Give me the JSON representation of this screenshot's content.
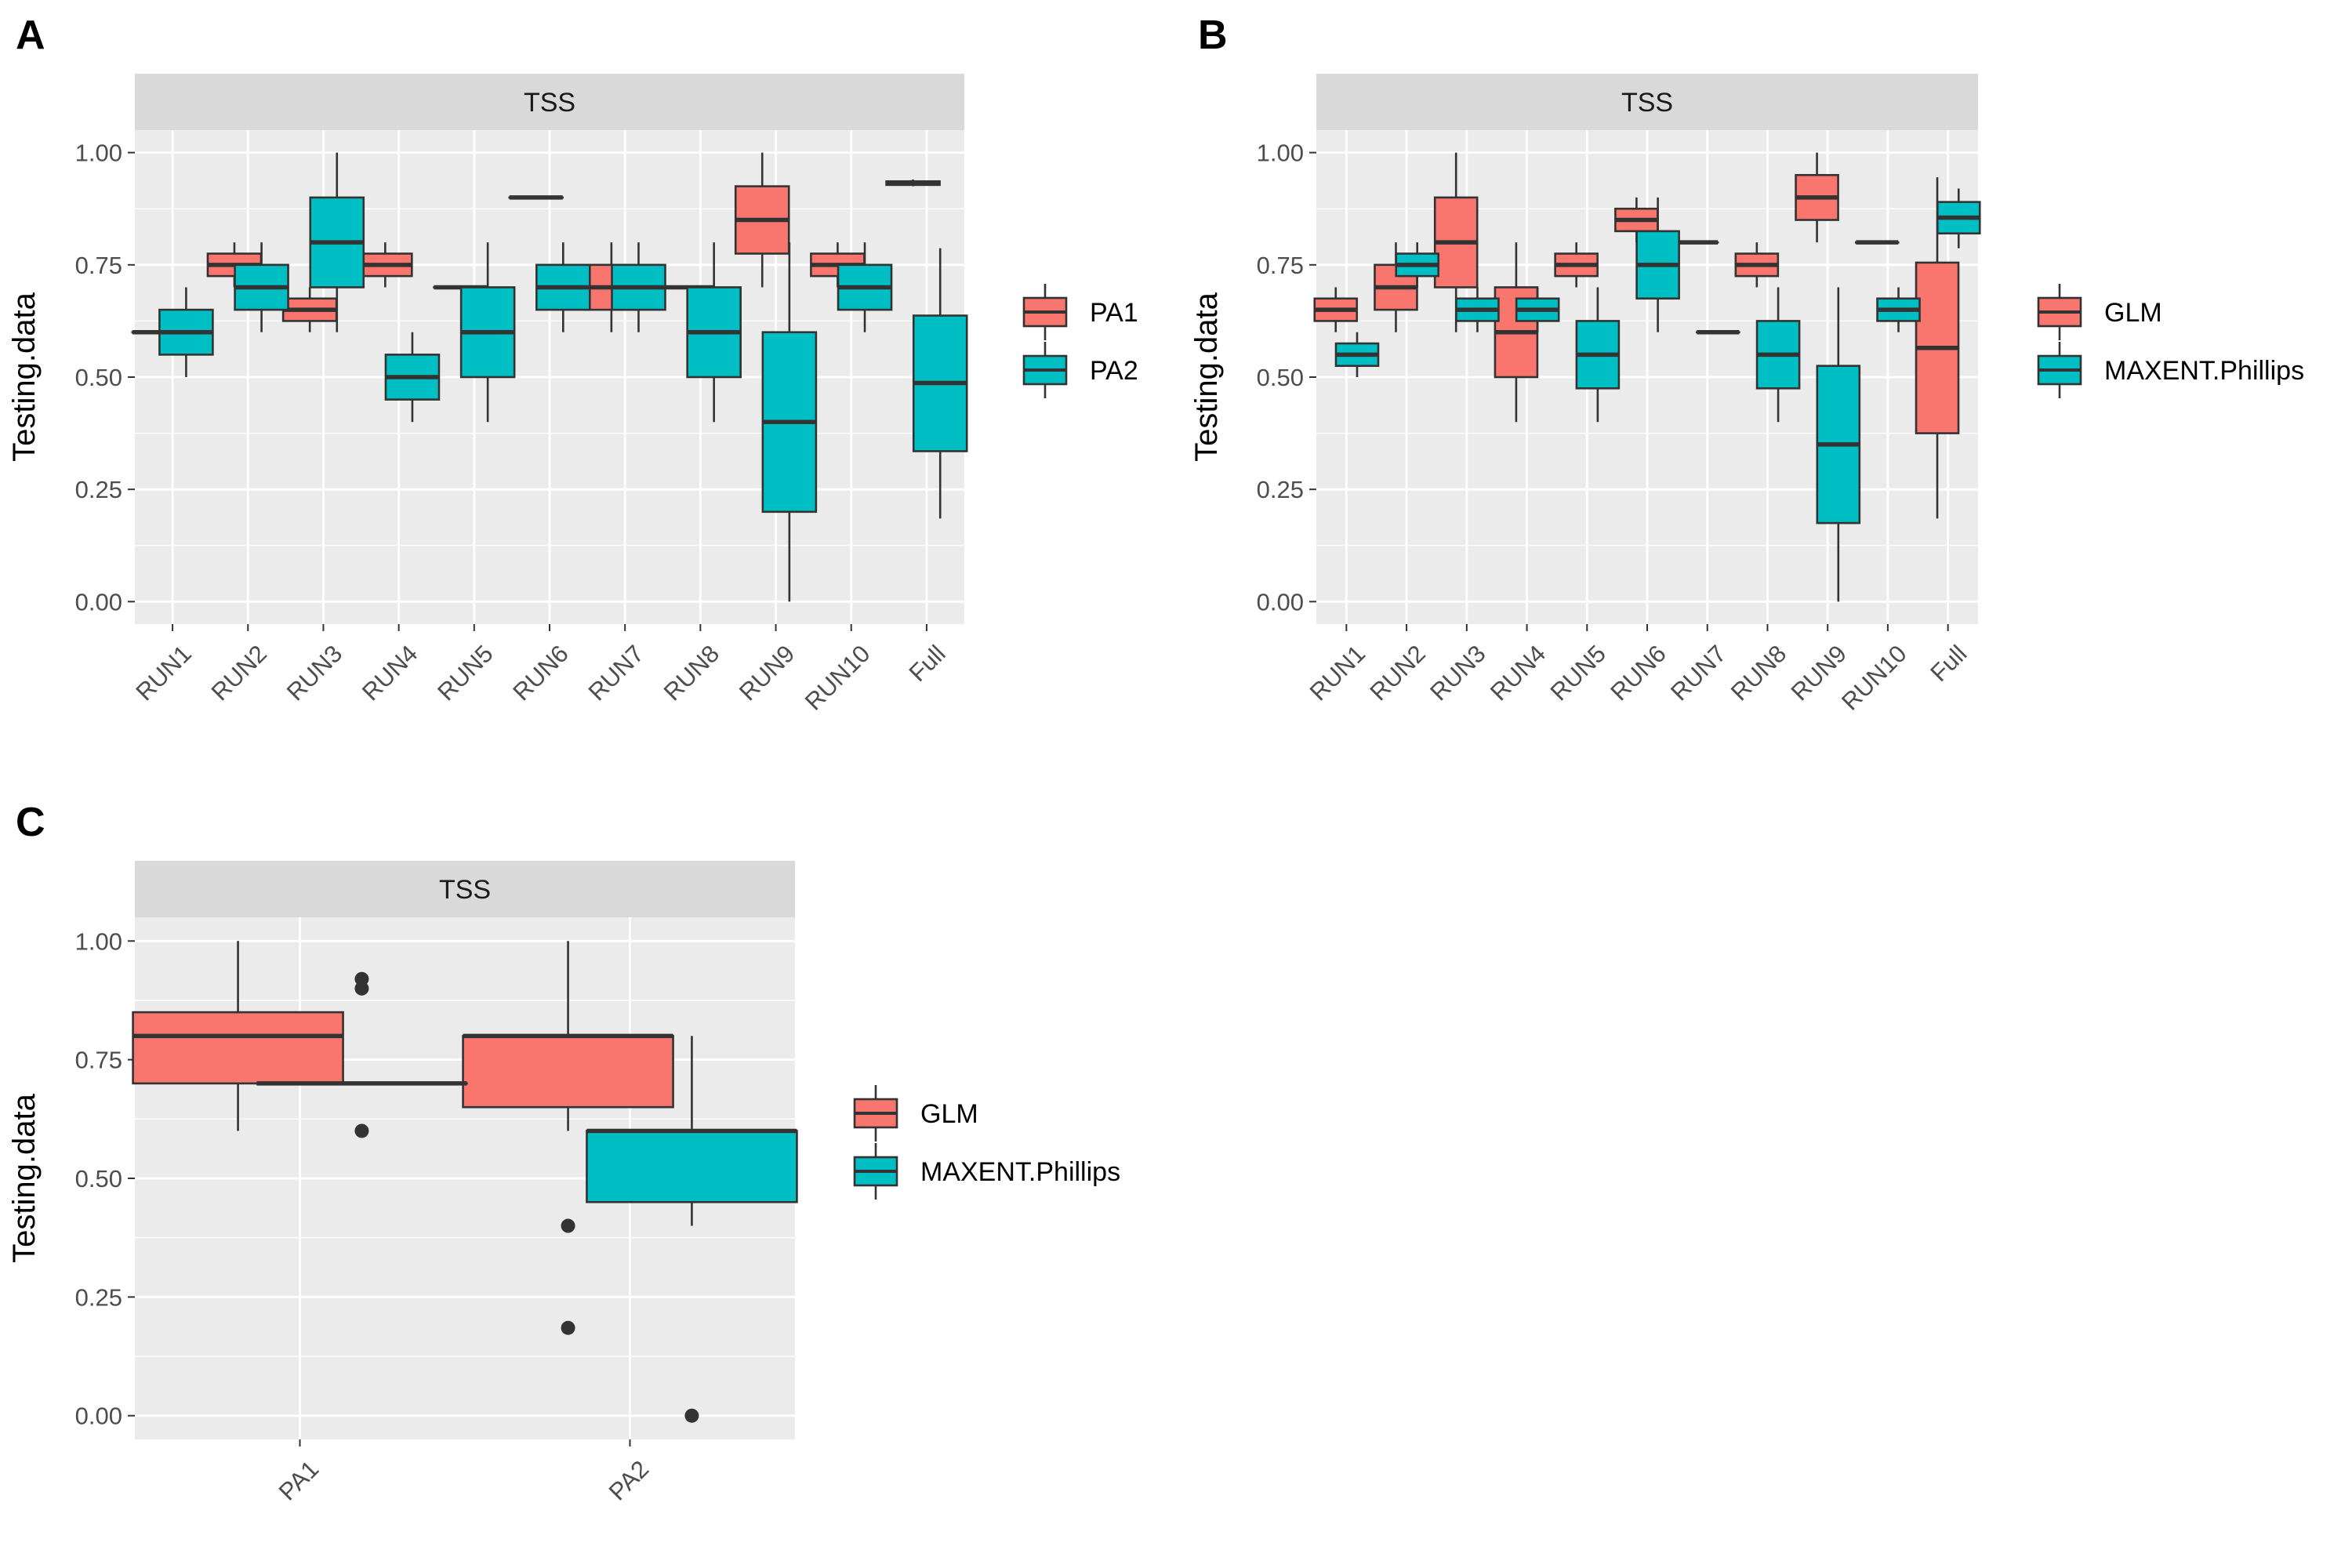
{
  "colors": {
    "red": "#F8766D",
    "teal": "#00BFC4",
    "panel_bg": "#EBEBEB",
    "strip_bg": "#D9D9D9",
    "grid": "#FFFFFF",
    "outline": "#333333"
  },
  "chart_data": [
    {
      "panel": "A",
      "type": "box",
      "strip": "TSS",
      "ylabel": "Testing.data",
      "xlabel": "",
      "ylim": [
        0,
        1.05
      ],
      "yticks": [
        "0.00",
        "0.25",
        "0.50",
        "0.75",
        "1.00"
      ],
      "categories": [
        "RUN1",
        "RUN2",
        "RUN3",
        "RUN4",
        "RUN5",
        "RUN6",
        "RUN7",
        "RUN8",
        "RUN9",
        "RUN10",
        "Full"
      ],
      "series": [
        {
          "name": "PA1",
          "color": "#F8766D",
          "boxes": [
            {
              "min": 0.6,
              "q1": 0.6,
              "median": 0.6,
              "q3": 0.6,
              "max": 0.6
            },
            {
              "min": 0.7,
              "q1": 0.725,
              "median": 0.75,
              "q3": 0.775,
              "max": 0.8
            },
            {
              "min": 0.6,
              "q1": 0.625,
              "median": 0.65,
              "q3": 0.675,
              "max": 0.7
            },
            {
              "min": 0.7,
              "q1": 0.725,
              "median": 0.75,
              "q3": 0.775,
              "max": 0.8
            },
            {
              "min": 0.7,
              "q1": 0.7,
              "median": 0.7,
              "q3": 0.7,
              "max": 0.7
            },
            {
              "min": 0.9,
              "q1": 0.9,
              "median": 0.9,
              "q3": 0.9,
              "max": 0.9
            },
            {
              "min": 0.6,
              "q1": 0.65,
              "median": 0.7,
              "q3": 0.75,
              "max": 0.8
            },
            {
              "min": 0.7,
              "q1": 0.7,
              "median": 0.7,
              "q3": 0.7,
              "max": 0.7
            },
            {
              "min": 0.7,
              "q1": 0.775,
              "median": 0.85,
              "q3": 0.925,
              "max": 1.0
            },
            {
              "min": 0.7,
              "q1": 0.725,
              "median": 0.75,
              "q3": 0.775,
              "max": 0.8
            },
            {
              "min": 0.925,
              "q1": 0.928,
              "median": 0.932,
              "q3": 0.936,
              "max": 0.94
            }
          ]
        },
        {
          "name": "PA2",
          "color": "#00BFC4",
          "boxes": [
            {
              "min": 0.5,
              "q1": 0.55,
              "median": 0.6,
              "q3": 0.65,
              "max": 0.7
            },
            {
              "min": 0.6,
              "q1": 0.65,
              "median": 0.7,
              "q3": 0.75,
              "max": 0.8
            },
            {
              "min": 0.6,
              "q1": 0.7,
              "median": 0.8,
              "q3": 0.9,
              "max": 1.0
            },
            {
              "min": 0.4,
              "q1": 0.45,
              "median": 0.5,
              "q3": 0.55,
              "max": 0.6
            },
            {
              "min": 0.4,
              "q1": 0.5,
              "median": 0.6,
              "q3": 0.7,
              "max": 0.8
            },
            {
              "min": 0.6,
              "q1": 0.65,
              "median": 0.7,
              "q3": 0.75,
              "max": 0.8
            },
            {
              "min": 0.6,
              "q1": 0.65,
              "median": 0.7,
              "q3": 0.75,
              "max": 0.8
            },
            {
              "min": 0.4,
              "q1": 0.5,
              "median": 0.6,
              "q3": 0.7,
              "max": 0.8
            },
            {
              "min": 0.0,
              "q1": 0.2,
              "median": 0.4,
              "q3": 0.6,
              "max": 0.8
            },
            {
              "min": 0.6,
              "q1": 0.65,
              "median": 0.7,
              "q3": 0.75,
              "max": 0.8
            },
            {
              "min": 0.185,
              "q1": 0.335,
              "median": 0.487,
              "q3": 0.637,
              "max": 0.787
            }
          ]
        }
      ]
    },
    {
      "panel": "B",
      "type": "box",
      "strip": "TSS",
      "ylabel": "Testing.data",
      "xlabel": "",
      "ylim": [
        0,
        1.05
      ],
      "yticks": [
        "0.00",
        "0.25",
        "0.50",
        "0.75",
        "1.00"
      ],
      "categories": [
        "RUN1",
        "RUN2",
        "RUN3",
        "RUN4",
        "RUN5",
        "RUN6",
        "RUN7",
        "RUN8",
        "RUN9",
        "RUN10",
        "Full"
      ],
      "series": [
        {
          "name": "GLM",
          "color": "#F8766D",
          "boxes": [
            {
              "min": 0.6,
              "q1": 0.625,
              "median": 0.65,
              "q3": 0.675,
              "max": 0.7
            },
            {
              "min": 0.6,
              "q1": 0.65,
              "median": 0.7,
              "q3": 0.75,
              "max": 0.8
            },
            {
              "min": 0.6,
              "q1": 0.7,
              "median": 0.8,
              "q3": 0.9,
              "max": 1.0
            },
            {
              "min": 0.4,
              "q1": 0.5,
              "median": 0.6,
              "q3": 0.7,
              "max": 0.8
            },
            {
              "min": 0.7,
              "q1": 0.725,
              "median": 0.75,
              "q3": 0.775,
              "max": 0.8
            },
            {
              "min": 0.8,
              "q1": 0.825,
              "median": 0.85,
              "q3": 0.875,
              "max": 0.9
            },
            {
              "min": 0.8,
              "q1": 0.8,
              "median": 0.8,
              "q3": 0.8,
              "max": 0.8
            },
            {
              "min": 0.7,
              "q1": 0.725,
              "median": 0.75,
              "q3": 0.775,
              "max": 0.8
            },
            {
              "min": 0.8,
              "q1": 0.85,
              "median": 0.9,
              "q3": 0.95,
              "max": 1.0
            },
            {
              "min": 0.8,
              "q1": 0.8,
              "median": 0.8,
              "q3": 0.8,
              "max": 0.8
            },
            {
              "min": 0.185,
              "q1": 0.375,
              "median": 0.565,
              "q3": 0.755,
              "max": 0.945
            }
          ]
        },
        {
          "name": "MAXENT.Phillips",
          "color": "#00BFC4",
          "boxes": [
            {
              "min": 0.5,
              "q1": 0.525,
              "median": 0.55,
              "q3": 0.575,
              "max": 0.6
            },
            {
              "min": 0.7,
              "q1": 0.725,
              "median": 0.75,
              "q3": 0.775,
              "max": 0.8
            },
            {
              "min": 0.6,
              "q1": 0.625,
              "median": 0.65,
              "q3": 0.675,
              "max": 0.7
            },
            {
              "min": 0.6,
              "q1": 0.625,
              "median": 0.65,
              "q3": 0.675,
              "max": 0.7
            },
            {
              "min": 0.4,
              "q1": 0.475,
              "median": 0.55,
              "q3": 0.625,
              "max": 0.7
            },
            {
              "min": 0.6,
              "q1": 0.675,
              "median": 0.75,
              "q3": 0.825,
              "max": 0.9
            },
            {
              "min": 0.6,
              "q1": 0.6,
              "median": 0.6,
              "q3": 0.6,
              "max": 0.6
            },
            {
              "min": 0.4,
              "q1": 0.475,
              "median": 0.55,
              "q3": 0.625,
              "max": 0.7
            },
            {
              "min": 0.0,
              "q1": 0.175,
              "median": 0.35,
              "q3": 0.525,
              "max": 0.7
            },
            {
              "min": 0.6,
              "q1": 0.625,
              "median": 0.65,
              "q3": 0.675,
              "max": 0.7
            },
            {
              "min": 0.787,
              "q1": 0.82,
              "median": 0.855,
              "q3": 0.89,
              "max": 0.92
            }
          ]
        }
      ]
    },
    {
      "panel": "C",
      "type": "box",
      "strip": "TSS",
      "ylabel": "Testing.data",
      "xlabel": "",
      "ylim": [
        0,
        1.05
      ],
      "yticks": [
        "0.00",
        "0.25",
        "0.50",
        "0.75",
        "1.00"
      ],
      "categories": [
        "PA1",
        "PA2"
      ],
      "series": [
        {
          "name": "GLM",
          "color": "#F8766D",
          "boxes": [
            {
              "min": 0.6,
              "q1": 0.7,
              "median": 0.8,
              "q3": 0.85,
              "max": 1.0,
              "outliers": []
            },
            {
              "min": 0.6,
              "q1": 0.65,
              "median": 0.8,
              "q3": 0.8,
              "max": 1.0,
              "outliers": [
                0.4,
                0.185
              ]
            }
          ]
        },
        {
          "name": "MAXENT.Phillips",
          "color": "#00BFC4",
          "boxes": [
            {
              "min": 0.7,
              "q1": 0.7,
              "median": 0.7,
              "q3": 0.7,
              "max": 0.7,
              "outliers": [
                0.92,
                0.9,
                0.6
              ]
            },
            {
              "min": 0.4,
              "q1": 0.45,
              "median": 0.6,
              "q3": 0.6,
              "max": 0.8,
              "outliers": [
                0.0
              ]
            }
          ]
        }
      ]
    }
  ]
}
